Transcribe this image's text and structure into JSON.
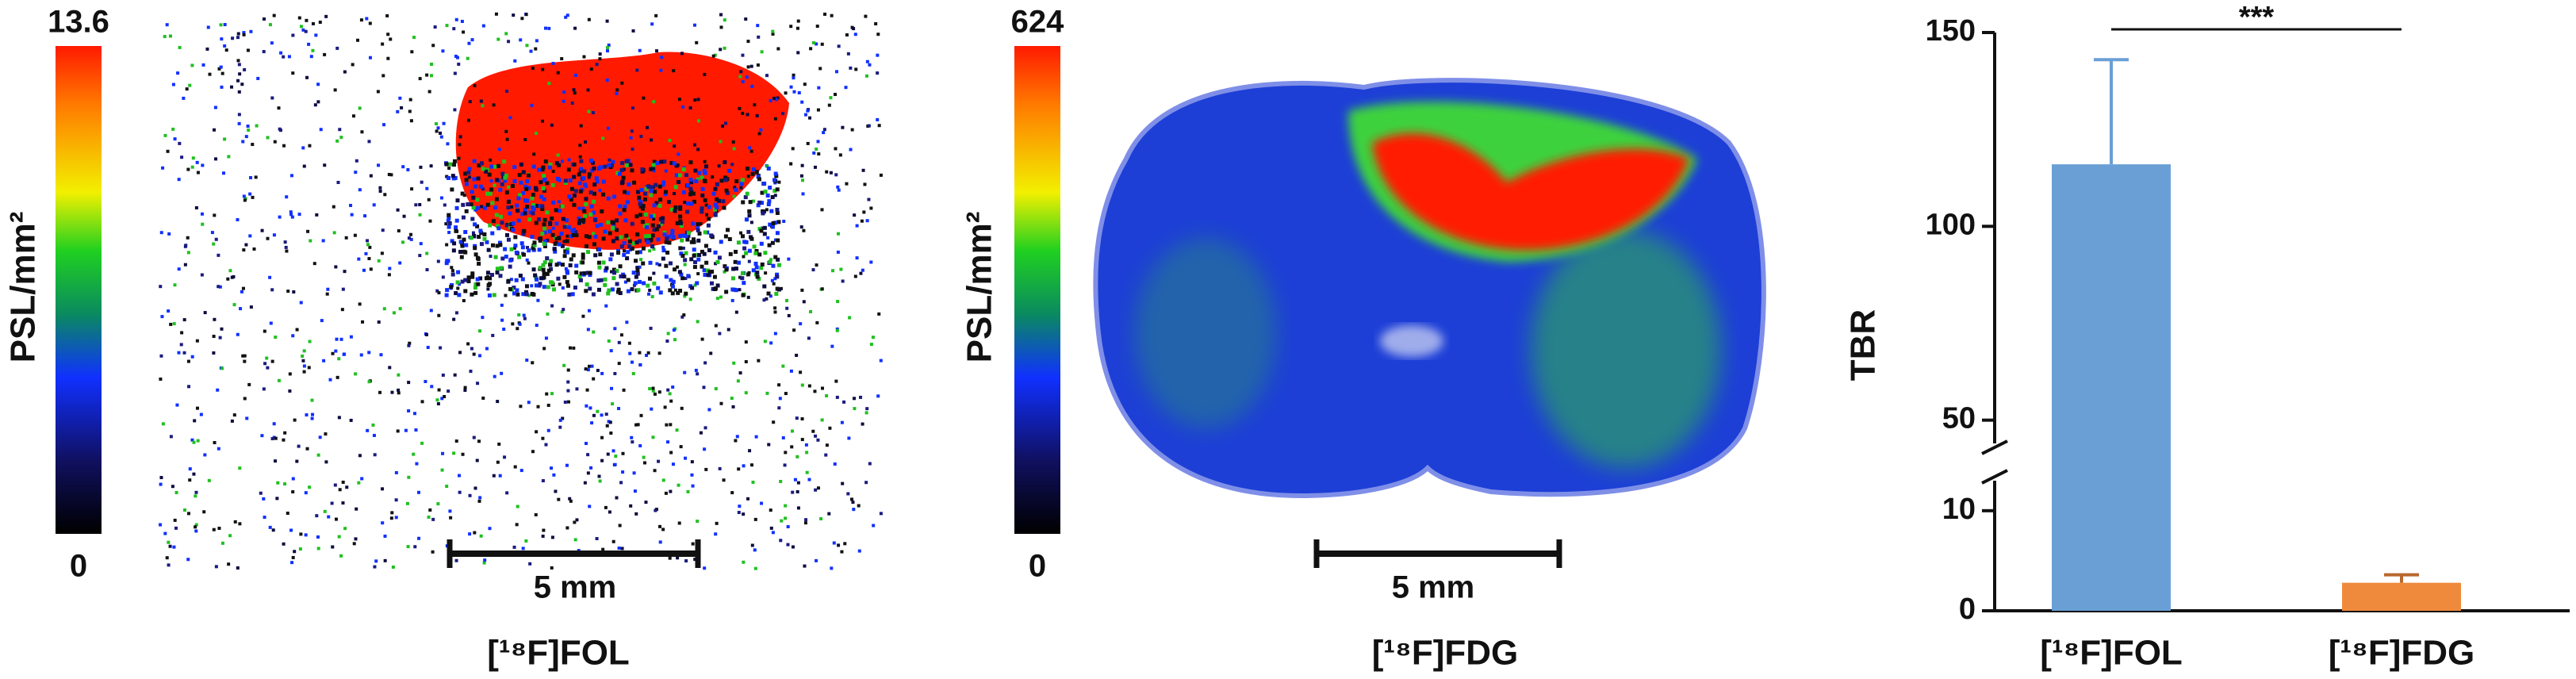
{
  "panels": [
    {
      "colorbar": {
        "max": 13.6,
        "min": 0,
        "label": "PSL/mm²"
      },
      "scale_bar": "5 mm",
      "caption": "[¹⁸F]FOL"
    },
    {
      "colorbar": {
        "max": 624,
        "min": 0,
        "label": "PSL/mm²"
      },
      "scale_bar": "5 mm",
      "caption": "[¹⁸F]FDG"
    }
  ],
  "chart_data": {
    "type": "bar",
    "ylabel": "TBR",
    "categories": [
      "[¹⁸F]FOL",
      "[¹⁸F]FDG"
    ],
    "values": [
      116,
      2.8
    ],
    "errors": [
      27,
      0.8
    ],
    "colors": [
      "#6a9fd6",
      "#ef8a3c"
    ],
    "ylim": [
      0,
      150
    ],
    "yticks": [
      0,
      10,
      50,
      100,
      150
    ],
    "y_break": [
      13,
      44
    ],
    "annotations": [
      {
        "text": "***",
        "from": 0,
        "to": 1
      }
    ]
  }
}
